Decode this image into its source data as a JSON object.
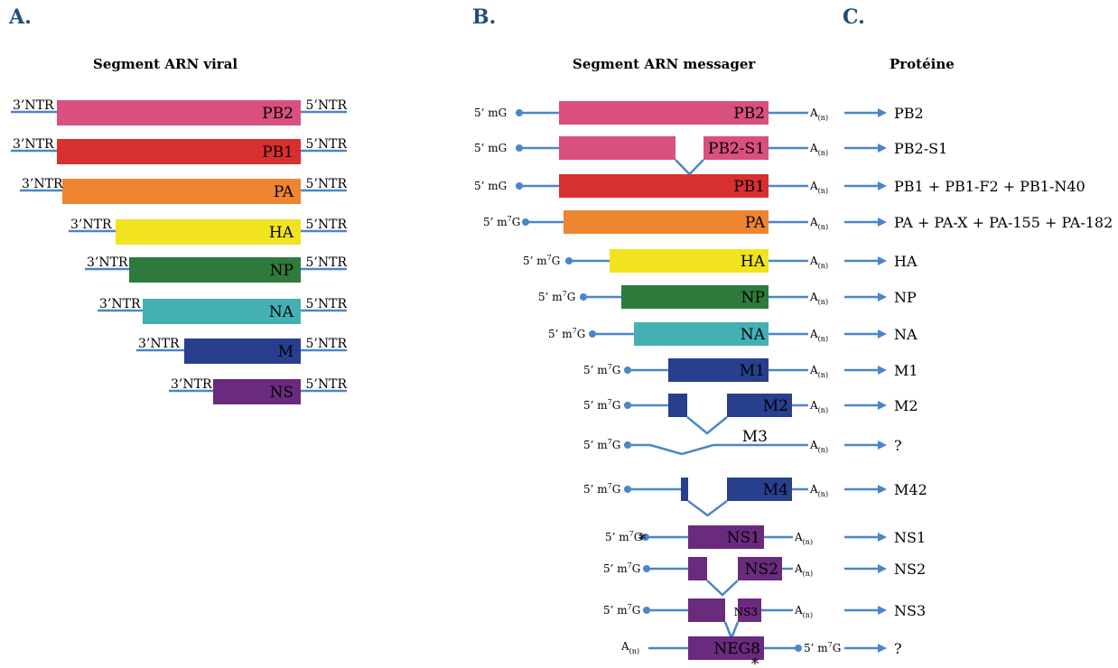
{
  "panels": {
    "a": "A.",
    "b": "B.",
    "c": "C."
  },
  "headings": {
    "viral": "Segment ARN viral",
    "messenger": "Segment ARN messager",
    "protein": "Protéine"
  },
  "ntr": {
    "three": "3’NTR",
    "five": "5’NTR"
  },
  "cap": {
    "prefix": "5’ m",
    "sup": "7",
    "suffix": "G"
  },
  "polya": {
    "base": "A",
    "sub": "(n)"
  },
  "colors": {
    "line": "#4a86c8",
    "PB2": "#d94f80",
    "PB1": "#d82f2f",
    "PA": "#ee8530",
    "HA": "#f1e31f",
    "NP": "#2e7a3c",
    "NA": "#44b0b3",
    "M": "#283f8e",
    "NS": "#6a2a7d"
  },
  "viral_segments": [
    {
      "label": "PB2",
      "color": "PB2"
    },
    {
      "label": "PB1",
      "color": "PB1"
    },
    {
      "label": "PA",
      "color": "PA"
    },
    {
      "label": "HA",
      "color": "HA"
    },
    {
      "label": "NP",
      "color": "NP"
    },
    {
      "label": "NA",
      "color": "NA"
    },
    {
      "label": "M",
      "color": "M"
    },
    {
      "label": "NS",
      "color": "NS"
    }
  ],
  "messenger_rows": [
    {
      "label": "PB2",
      "protein": "PB2"
    },
    {
      "label": "PB2-S1",
      "protein": "PB2-S1"
    },
    {
      "label": "PB1",
      "protein": "PB1 + PB1-F2 + PB1-N40"
    },
    {
      "label": "PA",
      "protein": "PA + PA-X + PA-155 + PA-182"
    },
    {
      "label": "HA",
      "protein": "HA"
    },
    {
      "label": "NP",
      "protein": "NP"
    },
    {
      "label": "NA",
      "protein": "NA"
    },
    {
      "label": "M1",
      "protein": "M1"
    },
    {
      "label": "M2",
      "protein": "M2"
    },
    {
      "label": "M3",
      "protein": "?"
    },
    {
      "label": "M4",
      "protein": "M42"
    },
    {
      "label": "NS1",
      "protein": "NS1"
    },
    {
      "label": "NS2",
      "protein": "NS2"
    },
    {
      "label": "NS3",
      "protein": "NS3"
    },
    {
      "label": "NEG8",
      "protein": "?"
    }
  ],
  "asterisk": "*"
}
